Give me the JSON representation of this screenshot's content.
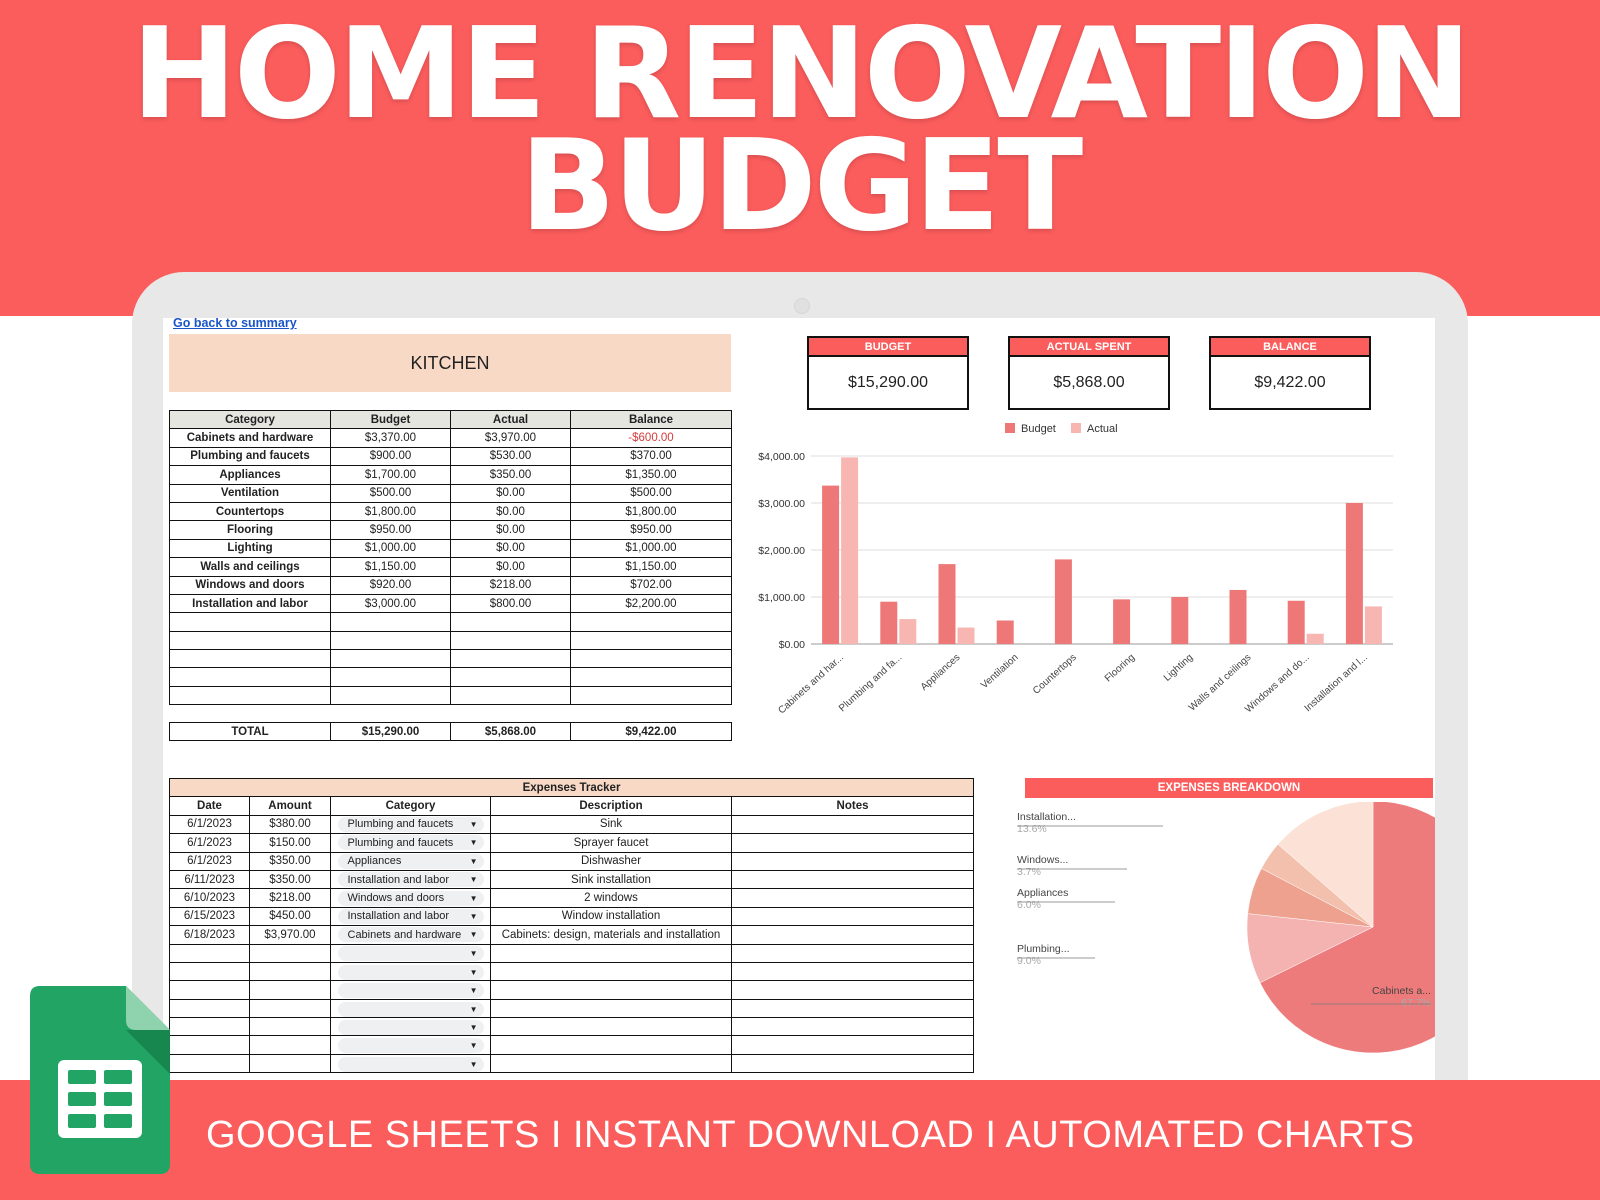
{
  "headline": {
    "line1": "HOME RENOVATION",
    "line2": "BUDGET"
  },
  "tagline": "GOOGLE SHEETS I INSTANT DOWNLOAD I AUTOMATED CHARTS",
  "sheet": {
    "back_link": "Go back to summary",
    "room_title": "KITCHEN",
    "columns": [
      "Category",
      "Budget",
      "Actual",
      "Balance"
    ],
    "rows": [
      {
        "category": "Cabinets and hardware",
        "budget": "$3,370.00",
        "actual": "$3,970.00",
        "balance": "-$600.00",
        "negative": true
      },
      {
        "category": "Plumbing and faucets",
        "budget": "$900.00",
        "actual": "$530.00",
        "balance": "$370.00"
      },
      {
        "category": "Appliances",
        "budget": "$1,700.00",
        "actual": "$350.00",
        "balance": "$1,350.00"
      },
      {
        "category": "Ventilation",
        "budget": "$500.00",
        "actual": "$0.00",
        "balance": "$500.00"
      },
      {
        "category": "Countertops",
        "budget": "$1,800.00",
        "actual": "$0.00",
        "balance": "$1,800.00"
      },
      {
        "category": "Flooring",
        "budget": "$950.00",
        "actual": "$0.00",
        "balance": "$950.00"
      },
      {
        "category": "Lighting",
        "budget": "$1,000.00",
        "actual": "$0.00",
        "balance": "$1,000.00"
      },
      {
        "category": "Walls and ceilings",
        "budget": "$1,150.00",
        "actual": "$0.00",
        "balance": "$1,150.00"
      },
      {
        "category": "Windows and doors",
        "budget": "$920.00",
        "actual": "$218.00",
        "balance": "$702.00"
      },
      {
        "category": "Installation and labor",
        "budget": "$3,000.00",
        "actual": "$800.00",
        "balance": "$2,200.00"
      }
    ],
    "empty_rows": 5,
    "total": {
      "label": "TOTAL",
      "budget": "$15,290.00",
      "actual": "$5,868.00",
      "balance": "$9,422.00"
    }
  },
  "stats": [
    {
      "label": "BUDGET",
      "value": "$15,290.00"
    },
    {
      "label": "ACTUAL SPENT",
      "value": "$5,868.00"
    },
    {
      "label": "BALANCE",
      "value": "$9,422.00"
    }
  ],
  "expenses": {
    "title": "Expenses Tracker",
    "columns": [
      "Date",
      "Amount",
      "Category",
      "Description",
      "Notes"
    ],
    "rows": [
      {
        "date": "6/1/2023",
        "amount": "$380.00",
        "category": "Plumbing and faucets",
        "description": "Sink",
        "notes": ""
      },
      {
        "date": "6/1/2023",
        "amount": "$150.00",
        "category": "Plumbing and faucets",
        "description": "Sprayer faucet",
        "notes": ""
      },
      {
        "date": "6/1/2023",
        "amount": "$350.00",
        "category": "Appliances",
        "description": "Dishwasher",
        "notes": ""
      },
      {
        "date": "6/11/2023",
        "amount": "$350.00",
        "category": "Installation and labor",
        "description": "Sink installation",
        "notes": ""
      },
      {
        "date": "6/10/2023",
        "amount": "$218.00",
        "category": "Windows and doors",
        "description": "2 windows",
        "notes": ""
      },
      {
        "date": "6/15/2023",
        "amount": "$450.00",
        "category": "Installation and labor",
        "description": "Window installation",
        "notes": ""
      },
      {
        "date": "6/18/2023",
        "amount": "$3,970.00",
        "category": "Cabinets and hardware",
        "description": "Cabinets: design, materials and installation",
        "notes": ""
      }
    ],
    "empty_rows": 7
  },
  "breakdown_title": "EXPENSES BREAKDOWN",
  "chart_data": [
    {
      "type": "bar",
      "categories": [
        "Cabinets and har...",
        "Plumbing and fa...",
        "Appliances",
        "Ventilation",
        "Countertops",
        "Flooring",
        "Lighting",
        "Walls and ceilings",
        "Windows and do...",
        "Installation and l..."
      ],
      "series": [
        {
          "name": "Budget",
          "color": "#ee7878",
          "values": [
            3370,
            900,
            1700,
            500,
            1800,
            950,
            1000,
            1150,
            920,
            3000
          ]
        },
        {
          "name": "Actual",
          "color": "#f7b6b2",
          "values": [
            3970,
            530,
            350,
            0,
            0,
            0,
            0,
            0,
            218,
            800
          ]
        }
      ],
      "ylim": [
        0,
        4000
      ],
      "yticks": [
        "$0.00",
        "$1,000.00",
        "$2,000.00",
        "$3,000.00",
        "$4,000.00"
      ],
      "legend": "top",
      "grid": true
    },
    {
      "type": "pie",
      "slices": [
        {
          "label": "Cabinets a...",
          "pct": "67.7%",
          "value": 67.7,
          "color": "#ee7b7b"
        },
        {
          "label": "Plumbing...",
          "pct": "9.0%",
          "value": 9.0,
          "color": "#f4b3b0"
        },
        {
          "label": "Appliances",
          "pct": "6.0%",
          "value": 6.0,
          "color": "#eea18e"
        },
        {
          "label": "Windows...",
          "pct": "3.7%",
          "value": 3.7,
          "color": "#f3c0ad"
        },
        {
          "label": "Installation...",
          "pct": "13.6%",
          "value": 13.6,
          "color": "#fbe1d6"
        }
      ]
    }
  ]
}
